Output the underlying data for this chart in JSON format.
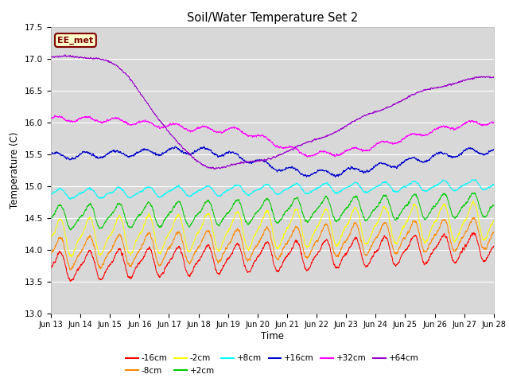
{
  "title": "Soil/Water Temperature Set 2",
  "xlabel": "Time",
  "ylabel": "Temperature (C)",
  "xlim": [
    0,
    15
  ],
  "ylim": [
    13.0,
    17.5
  ],
  "yticks": [
    13.0,
    13.5,
    14.0,
    14.5,
    15.0,
    15.5,
    16.0,
    16.5,
    17.0,
    17.5
  ],
  "xtick_labels": [
    "Jun 13",
    "Jun 14",
    "Jun 15",
    "Jun 16",
    "Jun 17",
    "Jun 18",
    "Jun 19",
    "Jun 20",
    "Jun 21",
    "Jun 22",
    "Jun 23",
    "Jun 24",
    "Jun 25",
    "Jun 26",
    "Jun 27",
    "Jun 28"
  ],
  "annotation_text": "EE_met",
  "annotation_bg": "#ffffcc",
  "annotation_border": "#800000",
  "bg_color": "#d8d8d8",
  "series": [
    {
      "label": "-16cm",
      "color": "#ff0000",
      "base": 13.72,
      "trend": 0.022,
      "amp": 0.2,
      "noise": 0.025
    },
    {
      "label": "-8cm",
      "color": "#ff8800",
      "base": 13.93,
      "trend": 0.022,
      "amp": 0.22,
      "noise": 0.025
    },
    {
      "label": "-2cm",
      "color": "#ffff00",
      "base": 14.18,
      "trend": 0.018,
      "amp": 0.26,
      "noise": 0.025
    },
    {
      "label": "+2cm",
      "color": "#00cc00",
      "base": 14.5,
      "trend": 0.014,
      "amp": 0.17,
      "noise": 0.02
    },
    {
      "label": "+8cm",
      "color": "#00ffff",
      "base": 14.87,
      "trend": 0.01,
      "amp": 0.07,
      "noise": 0.015
    },
    {
      "label": "+16cm",
      "color": "#0000cc",
      "base": 15.47,
      "trend": 0.003,
      "amp": 0.06,
      "noise": 0.02
    },
    {
      "label": "+32cm",
      "color": "#ff00ff",
      "base": 16.0,
      "trend": 0.0,
      "amp": 0.04,
      "noise": 0.018
    },
    {
      "label": "+64cm",
      "color": "#9900cc",
      "base": 17.02,
      "trend": 0.0,
      "amp": 0.02,
      "noise": 0.015
    }
  ]
}
